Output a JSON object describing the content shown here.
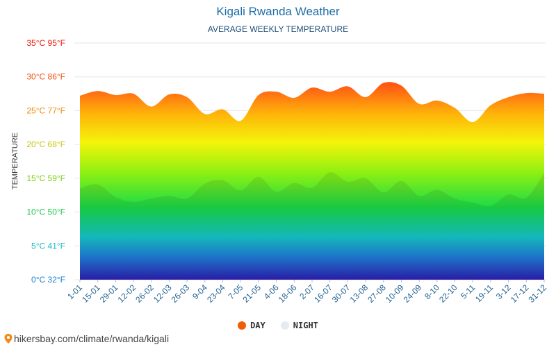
{
  "header": {
    "title": "Kigali Rwanda Weather",
    "subtitle": "AVERAGE WEEKLY TEMPERATURE"
  },
  "footer": {
    "url": "hikersbay.com/climate/rwanda/kigali"
  },
  "legend": {
    "day_label": "DAY",
    "night_label": "NIGHT",
    "day_color": "#f25c05",
    "night_color": "#e6ebf2"
  },
  "chart_data": {
    "type": "area",
    "title": "Kigali Rwanda Weather",
    "subtitle": "AVERAGE WEEKLY TEMPERATURE",
    "ylabel": "TEMPERATURE",
    "xlabel": "",
    "ylim": [
      0,
      35
    ],
    "grid": true,
    "legend_position": "bottom",
    "y_ticks": [
      {
        "value": 0,
        "label": "0°C 32°F"
      },
      {
        "value": 5,
        "label": "5°C 41°F"
      },
      {
        "value": 10,
        "label": "10°C 50°F"
      },
      {
        "value": 15,
        "label": "15°C 59°F"
      },
      {
        "value": 20,
        "label": "20°C 68°F"
      },
      {
        "value": 25,
        "label": "25°C 77°F"
      },
      {
        "value": 30,
        "label": "30°C 86°F"
      },
      {
        "value": 35,
        "label": "35°C 95°F"
      }
    ],
    "categories": [
      "1-01",
      "15-01",
      "29-01",
      "12-02",
      "26-02",
      "12-03",
      "26-03",
      "9-04",
      "23-04",
      "7-05",
      "21-05",
      "4-06",
      "18-06",
      "2-07",
      "16-07",
      "30-07",
      "13-08",
      "27-08",
      "10-09",
      "24-09",
      "8-10",
      "22-10",
      "5-11",
      "19-11",
      "3-12",
      "17-12",
      "31-12"
    ],
    "series": [
      {
        "name": "DAY",
        "values": [
          27.2,
          27.9,
          27.3,
          27.5,
          25.6,
          27.4,
          27.0,
          24.5,
          25.2,
          23.5,
          27.3,
          27.8,
          26.9,
          28.4,
          27.8,
          28.6,
          27.0,
          29.1,
          28.7,
          26.0,
          26.5,
          25.4,
          23.3,
          25.8,
          27.0,
          27.6,
          27.5
        ]
      },
      {
        "name": "NIGHT",
        "values": [
          13.5,
          14.1,
          12.2,
          11.5,
          12.0,
          12.4,
          12.0,
          14.2,
          14.7,
          13.2,
          15.2,
          13.0,
          14.3,
          13.6,
          15.9,
          14.5,
          15.0,
          12.9,
          14.6,
          12.4,
          13.3,
          12.0,
          11.4,
          10.9,
          12.6,
          12.1,
          15.8
        ]
      }
    ]
  }
}
